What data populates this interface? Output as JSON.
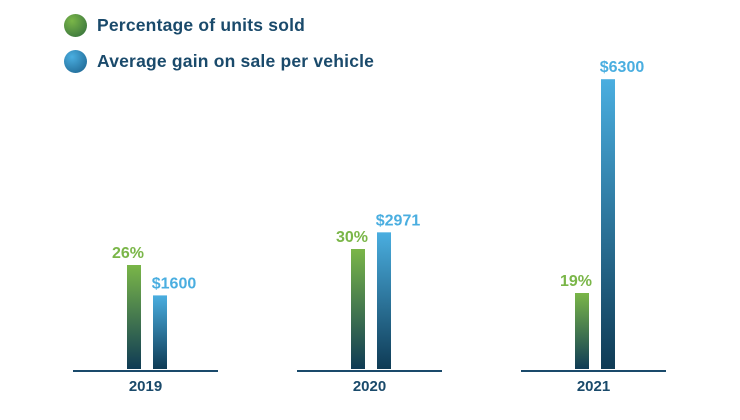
{
  "chart_data": {
    "type": "bar",
    "categories": [
      "2019",
      "2020",
      "2021"
    ],
    "series": [
      {
        "name": "Percentage of units sold",
        "values": [
          26,
          30,
          19
        ],
        "labels": [
          "26%",
          "30%",
          "19%"
        ],
        "color": "#7ab648",
        "color_dark": "#0f3b55"
      },
      {
        "name": "Average gain on sale per vehicle",
        "values": [
          1600,
          2971,
          6300
        ],
        "labels": [
          "$1600",
          "$2971",
          "$6300"
        ],
        "color": "#4aaee0",
        "color_dark": "#0f3b55"
      }
    ],
    "axis_color": "#1a4a6b",
    "grid": false,
    "legend": "top-left"
  }
}
